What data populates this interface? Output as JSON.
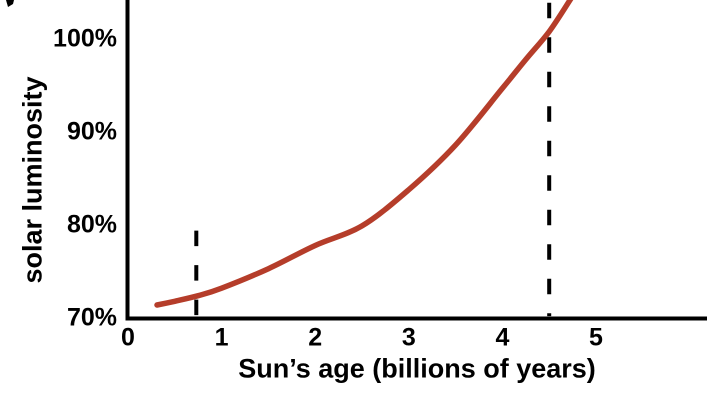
{
  "chart_data": {
    "type": "line",
    "title": "",
    "xlabel": "Sun’s age (billions of years)",
    "ylabel": "solar luminosity",
    "x_ticks": [
      "0",
      "1",
      "2",
      "3",
      "4",
      "5"
    ],
    "y_ticks": [
      {
        "label": "70%",
        "value": 70
      },
      {
        "label": "80%",
        "value": 80
      },
      {
        "label": "90%",
        "value": 90
      },
      {
        "label": "100%",
        "value": 100
      }
    ],
    "xlim": [
      0,
      6.2
    ],
    "ylim": [
      70,
      104.2
    ],
    "grid": false,
    "legend": "none",
    "axis_color": "#000000",
    "series": [
      {
        "name": "solar-luminosity-vs-age",
        "color": "#b53d2a",
        "points": [
          [
            0.31,
            71.4
          ],
          [
            0.5,
            71.8
          ],
          [
            0.75,
            72.4
          ],
          [
            1.0,
            73.2
          ],
          [
            1.5,
            75.3
          ],
          [
            2.0,
            77.8
          ],
          [
            2.5,
            79.9
          ],
          [
            3.0,
            83.8
          ],
          [
            3.5,
            88.6
          ],
          [
            4.0,
            94.7
          ],
          [
            4.25,
            97.8
          ],
          [
            4.5,
            100.8
          ],
          [
            4.73,
            104.3
          ]
        ]
      }
    ],
    "markers": [
      {
        "name": "early-age-marker",
        "x": 0.73,
        "y_from": 70.2,
        "y_to": 79.4,
        "style": "dashed",
        "color": "#000000"
      },
      {
        "name": "current-age-marker",
        "x": 4.5,
        "y_from": 70.2,
        "y_to": 103.9,
        "style": "dashed",
        "color": "#000000"
      }
    ]
  }
}
